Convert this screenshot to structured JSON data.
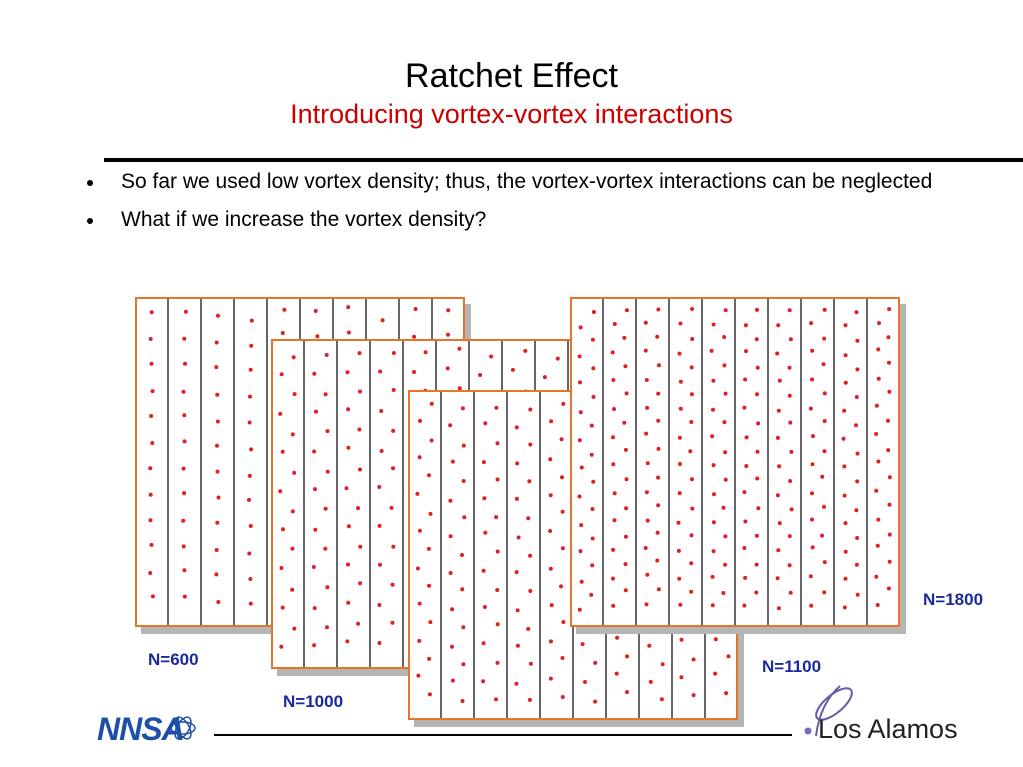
{
  "header": {
    "title": "Ratchet Effect",
    "subtitle": "Introducing vortex-vortex interactions"
  },
  "bullets": [
    "So far we used low vortex density; thus, the vortex-vortex interactions can be neglected",
    "What if we increase the vortex density?"
  ],
  "panels": {
    "n600": {
      "label": "N=600",
      "channels": 10,
      "dot_rows": 12
    },
    "n1000": {
      "label": "N=1000",
      "channels": 10,
      "dot_rows": 16
    },
    "n1100": {
      "label": "N=1100",
      "channels": 10,
      "dot_rows": 17
    },
    "n1800": {
      "label": "N=1800",
      "channels": 10,
      "dot_rows": 22
    }
  },
  "colors": {
    "title": "#000000",
    "subtitle": "#cc0000",
    "panel_border": "#e8742a",
    "vortex_dot": "#e02020",
    "label": "#1a2a9c"
  },
  "logos": {
    "left": "NNSA",
    "right": "Los Alamos"
  }
}
